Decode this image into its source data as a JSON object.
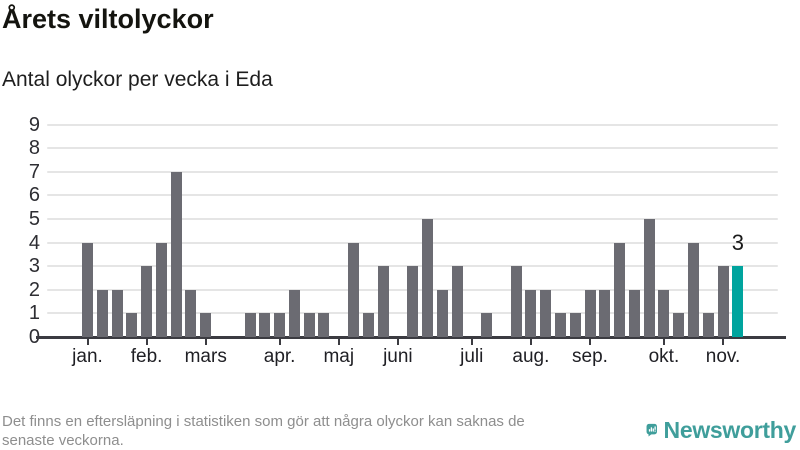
{
  "chart_data": {
    "type": "bar",
    "title": "Årets viltolyckor",
    "subtitle": "Antal olyckor per vecka i Eda",
    "x_unit": "vecka",
    "start_week": 1,
    "values": [
      4,
      2,
      2,
      1,
      3,
      4,
      7,
      2,
      1,
      0,
      0,
      1,
      1,
      1,
      2,
      1,
      1,
      0,
      4,
      1,
      3,
      0,
      3,
      5,
      2,
      3,
      0,
      1,
      0,
      3,
      2,
      2,
      1,
      1,
      2,
      2,
      4,
      2,
      5,
      2,
      1,
      4,
      1,
      3,
      3
    ],
    "ylim": [
      0,
      9
    ],
    "yticks": [
      0,
      1,
      2,
      3,
      4,
      5,
      6,
      7,
      8,
      9
    ],
    "month_ticks": [
      {
        "label": "jan.",
        "week": 1
      },
      {
        "label": "feb.",
        "week": 5
      },
      {
        "label": "mars",
        "week": 9
      },
      {
        "label": "apr.",
        "week": 14
      },
      {
        "label": "maj",
        "week": 18
      },
      {
        "label": "juni",
        "week": 22
      },
      {
        "label": "juli",
        "week": 27
      },
      {
        "label": "aug.",
        "week": 31
      },
      {
        "label": "sep.",
        "week": 35
      },
      {
        "label": "okt.",
        "week": 40
      },
      {
        "label": "nov.",
        "week": 44
      }
    ],
    "highlight": {
      "week": 45,
      "label": "3"
    },
    "colors": {
      "bar": "#6B6B72",
      "highlight": "#00A49E",
      "grid": "#E5E5E5",
      "axis": "#3B3B41"
    },
    "grid": true,
    "legend_position": "none"
  },
  "footer": {
    "lines": [
      "Det finns en eftersläpning i statistiken som gör att några olyckor kan saknas de",
      "senaste veckorna."
    ]
  },
  "brand": {
    "name": "Newsworthy",
    "color": "#3F9E9B",
    "icon": "bar-chart-speech-bubble-icon"
  }
}
